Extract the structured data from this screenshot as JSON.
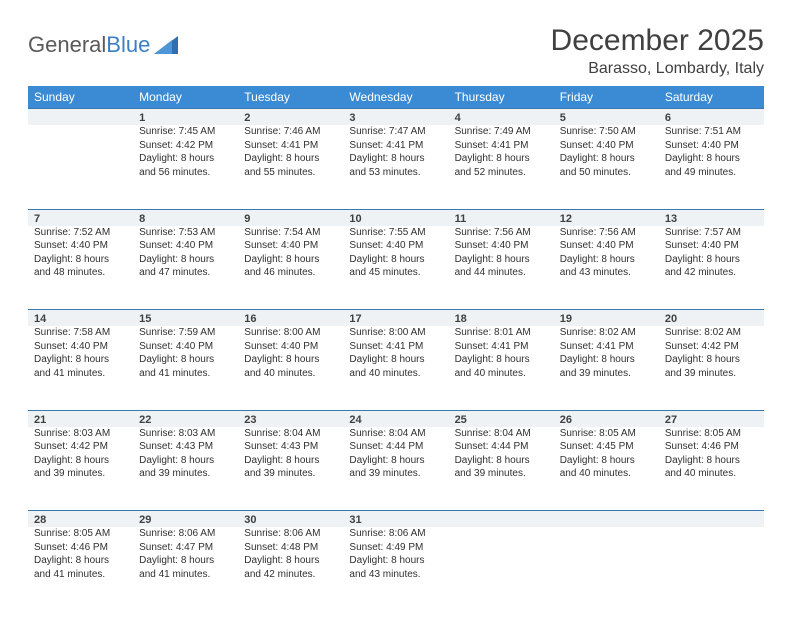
{
  "logo": {
    "word1": "General",
    "word2": "Blue"
  },
  "title": "December 2025",
  "location": "Barasso, Lombardy, Italy",
  "colors": {
    "header_bg": "#3b8bd4",
    "header_text": "#ffffff",
    "daynum_bg": "#eef2f5",
    "daynum_border": "#3a79ad",
    "body_text": "#303030",
    "title_text": "#404040"
  },
  "layout": {
    "cols": 7,
    "rows": 5,
    "first_day_col": 1
  },
  "day_headers": [
    "Sunday",
    "Monday",
    "Tuesday",
    "Wednesday",
    "Thursday",
    "Friday",
    "Saturday"
  ],
  "days": [
    {
      "n": 1,
      "sunrise": "7:45 AM",
      "sunset": "4:42 PM",
      "daylight": "8 hours and 56 minutes."
    },
    {
      "n": 2,
      "sunrise": "7:46 AM",
      "sunset": "4:41 PM",
      "daylight": "8 hours and 55 minutes."
    },
    {
      "n": 3,
      "sunrise": "7:47 AM",
      "sunset": "4:41 PM",
      "daylight": "8 hours and 53 minutes."
    },
    {
      "n": 4,
      "sunrise": "7:49 AM",
      "sunset": "4:41 PM",
      "daylight": "8 hours and 52 minutes."
    },
    {
      "n": 5,
      "sunrise": "7:50 AM",
      "sunset": "4:40 PM",
      "daylight": "8 hours and 50 minutes."
    },
    {
      "n": 6,
      "sunrise": "7:51 AM",
      "sunset": "4:40 PM",
      "daylight": "8 hours and 49 minutes."
    },
    {
      "n": 7,
      "sunrise": "7:52 AM",
      "sunset": "4:40 PM",
      "daylight": "8 hours and 48 minutes."
    },
    {
      "n": 8,
      "sunrise": "7:53 AM",
      "sunset": "4:40 PM",
      "daylight": "8 hours and 47 minutes."
    },
    {
      "n": 9,
      "sunrise": "7:54 AM",
      "sunset": "4:40 PM",
      "daylight": "8 hours and 46 minutes."
    },
    {
      "n": 10,
      "sunrise": "7:55 AM",
      "sunset": "4:40 PM",
      "daylight": "8 hours and 45 minutes."
    },
    {
      "n": 11,
      "sunrise": "7:56 AM",
      "sunset": "4:40 PM",
      "daylight": "8 hours and 44 minutes."
    },
    {
      "n": 12,
      "sunrise": "7:56 AM",
      "sunset": "4:40 PM",
      "daylight": "8 hours and 43 minutes."
    },
    {
      "n": 13,
      "sunrise": "7:57 AM",
      "sunset": "4:40 PM",
      "daylight": "8 hours and 42 minutes."
    },
    {
      "n": 14,
      "sunrise": "7:58 AM",
      "sunset": "4:40 PM",
      "daylight": "8 hours and 41 minutes."
    },
    {
      "n": 15,
      "sunrise": "7:59 AM",
      "sunset": "4:40 PM",
      "daylight": "8 hours and 41 minutes."
    },
    {
      "n": 16,
      "sunrise": "8:00 AM",
      "sunset": "4:40 PM",
      "daylight": "8 hours and 40 minutes."
    },
    {
      "n": 17,
      "sunrise": "8:00 AM",
      "sunset": "4:41 PM",
      "daylight": "8 hours and 40 minutes."
    },
    {
      "n": 18,
      "sunrise": "8:01 AM",
      "sunset": "4:41 PM",
      "daylight": "8 hours and 40 minutes."
    },
    {
      "n": 19,
      "sunrise": "8:02 AM",
      "sunset": "4:41 PM",
      "daylight": "8 hours and 39 minutes."
    },
    {
      "n": 20,
      "sunrise": "8:02 AM",
      "sunset": "4:42 PM",
      "daylight": "8 hours and 39 minutes."
    },
    {
      "n": 21,
      "sunrise": "8:03 AM",
      "sunset": "4:42 PM",
      "daylight": "8 hours and 39 minutes."
    },
    {
      "n": 22,
      "sunrise": "8:03 AM",
      "sunset": "4:43 PM",
      "daylight": "8 hours and 39 minutes."
    },
    {
      "n": 23,
      "sunrise": "8:04 AM",
      "sunset": "4:43 PM",
      "daylight": "8 hours and 39 minutes."
    },
    {
      "n": 24,
      "sunrise": "8:04 AM",
      "sunset": "4:44 PM",
      "daylight": "8 hours and 39 minutes."
    },
    {
      "n": 25,
      "sunrise": "8:04 AM",
      "sunset": "4:44 PM",
      "daylight": "8 hours and 39 minutes."
    },
    {
      "n": 26,
      "sunrise": "8:05 AM",
      "sunset": "4:45 PM",
      "daylight": "8 hours and 40 minutes."
    },
    {
      "n": 27,
      "sunrise": "8:05 AM",
      "sunset": "4:46 PM",
      "daylight": "8 hours and 40 minutes."
    },
    {
      "n": 28,
      "sunrise": "8:05 AM",
      "sunset": "4:46 PM",
      "daylight": "8 hours and 41 minutes."
    },
    {
      "n": 29,
      "sunrise": "8:06 AM",
      "sunset": "4:47 PM",
      "daylight": "8 hours and 41 minutes."
    },
    {
      "n": 30,
      "sunrise": "8:06 AM",
      "sunset": "4:48 PM",
      "daylight": "8 hours and 42 minutes."
    },
    {
      "n": 31,
      "sunrise": "8:06 AM",
      "sunset": "4:49 PM",
      "daylight": "8 hours and 43 minutes."
    }
  ],
  "labels": {
    "sunrise": "Sunrise:",
    "sunset": "Sunset:",
    "daylight": "Daylight:"
  }
}
